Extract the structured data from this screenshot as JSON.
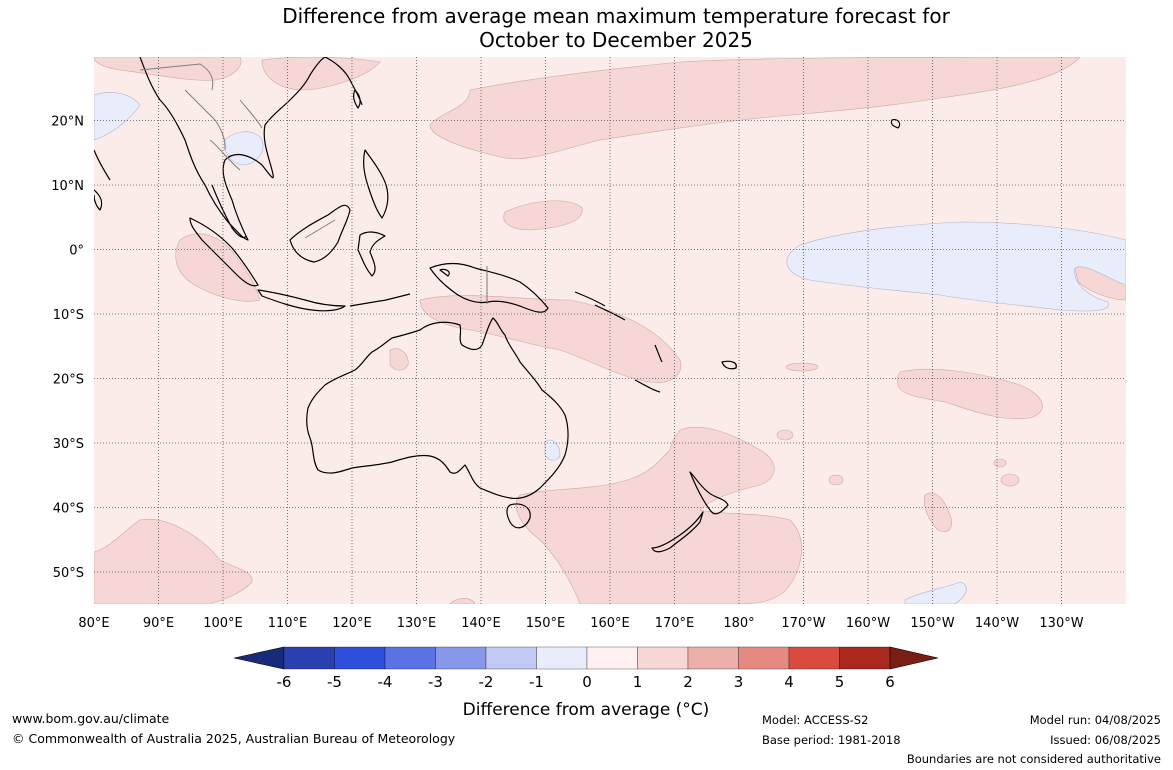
{
  "title": {
    "line1": "Difference from average mean maximum temperature forecast for",
    "line2": "October to December 2025"
  },
  "map": {
    "lon_ticks": [
      "80°E",
      "90°E",
      "100°E",
      "110°E",
      "120°E",
      "130°E",
      "140°E",
      "150°E",
      "160°E",
      "170°E",
      "180°",
      "170°W",
      "160°W",
      "150°W",
      "140°W",
      "130°W"
    ],
    "lat_ticks": [
      "20°N",
      "10°N",
      "0°",
      "10°S",
      "20°S",
      "30°S",
      "40°S",
      "50°S"
    ],
    "colors": {
      "background_0_to_1": "#fbecea",
      "anomaly_1_to_2": "#f6d7d5",
      "anomaly_minus1_to_0": "#e9ecfb",
      "coastline": "#000000",
      "border": "#7f7f7f",
      "gridline": "#555555"
    }
  },
  "legend": {
    "labels": [
      "-6",
      "-5",
      "-4",
      "-3",
      "-2",
      "-1",
      "0",
      "1",
      "2",
      "3",
      "4",
      "5",
      "6"
    ],
    "colors": [
      "#1a2a7a",
      "#2a3fb0",
      "#2f4fdc",
      "#5b72e4",
      "#8798ea",
      "#c0c8f4",
      "#e9ecfb",
      "#fdf2f1",
      "#f6d7d5",
      "#ecaea8",
      "#e58a81",
      "#db4a3e",
      "#a9291f",
      "#7a1e15"
    ],
    "title": "Difference from average ($^\\circ$C)",
    "title_display": "Difference from average (°C)"
  },
  "footer": {
    "url": "www.bom.gov.au/climate",
    "copyright": "© Commonwealth of Australia 2025, Australian Bureau of Meteorology",
    "model": "Model: ACCESS-S2",
    "base_period": "Base period: 1981-2018",
    "model_run": "Model run: 04/08/2025",
    "issued": "Issued: 06/08/2025",
    "disclaimer": "Boundaries are not considered authoritative"
  }
}
